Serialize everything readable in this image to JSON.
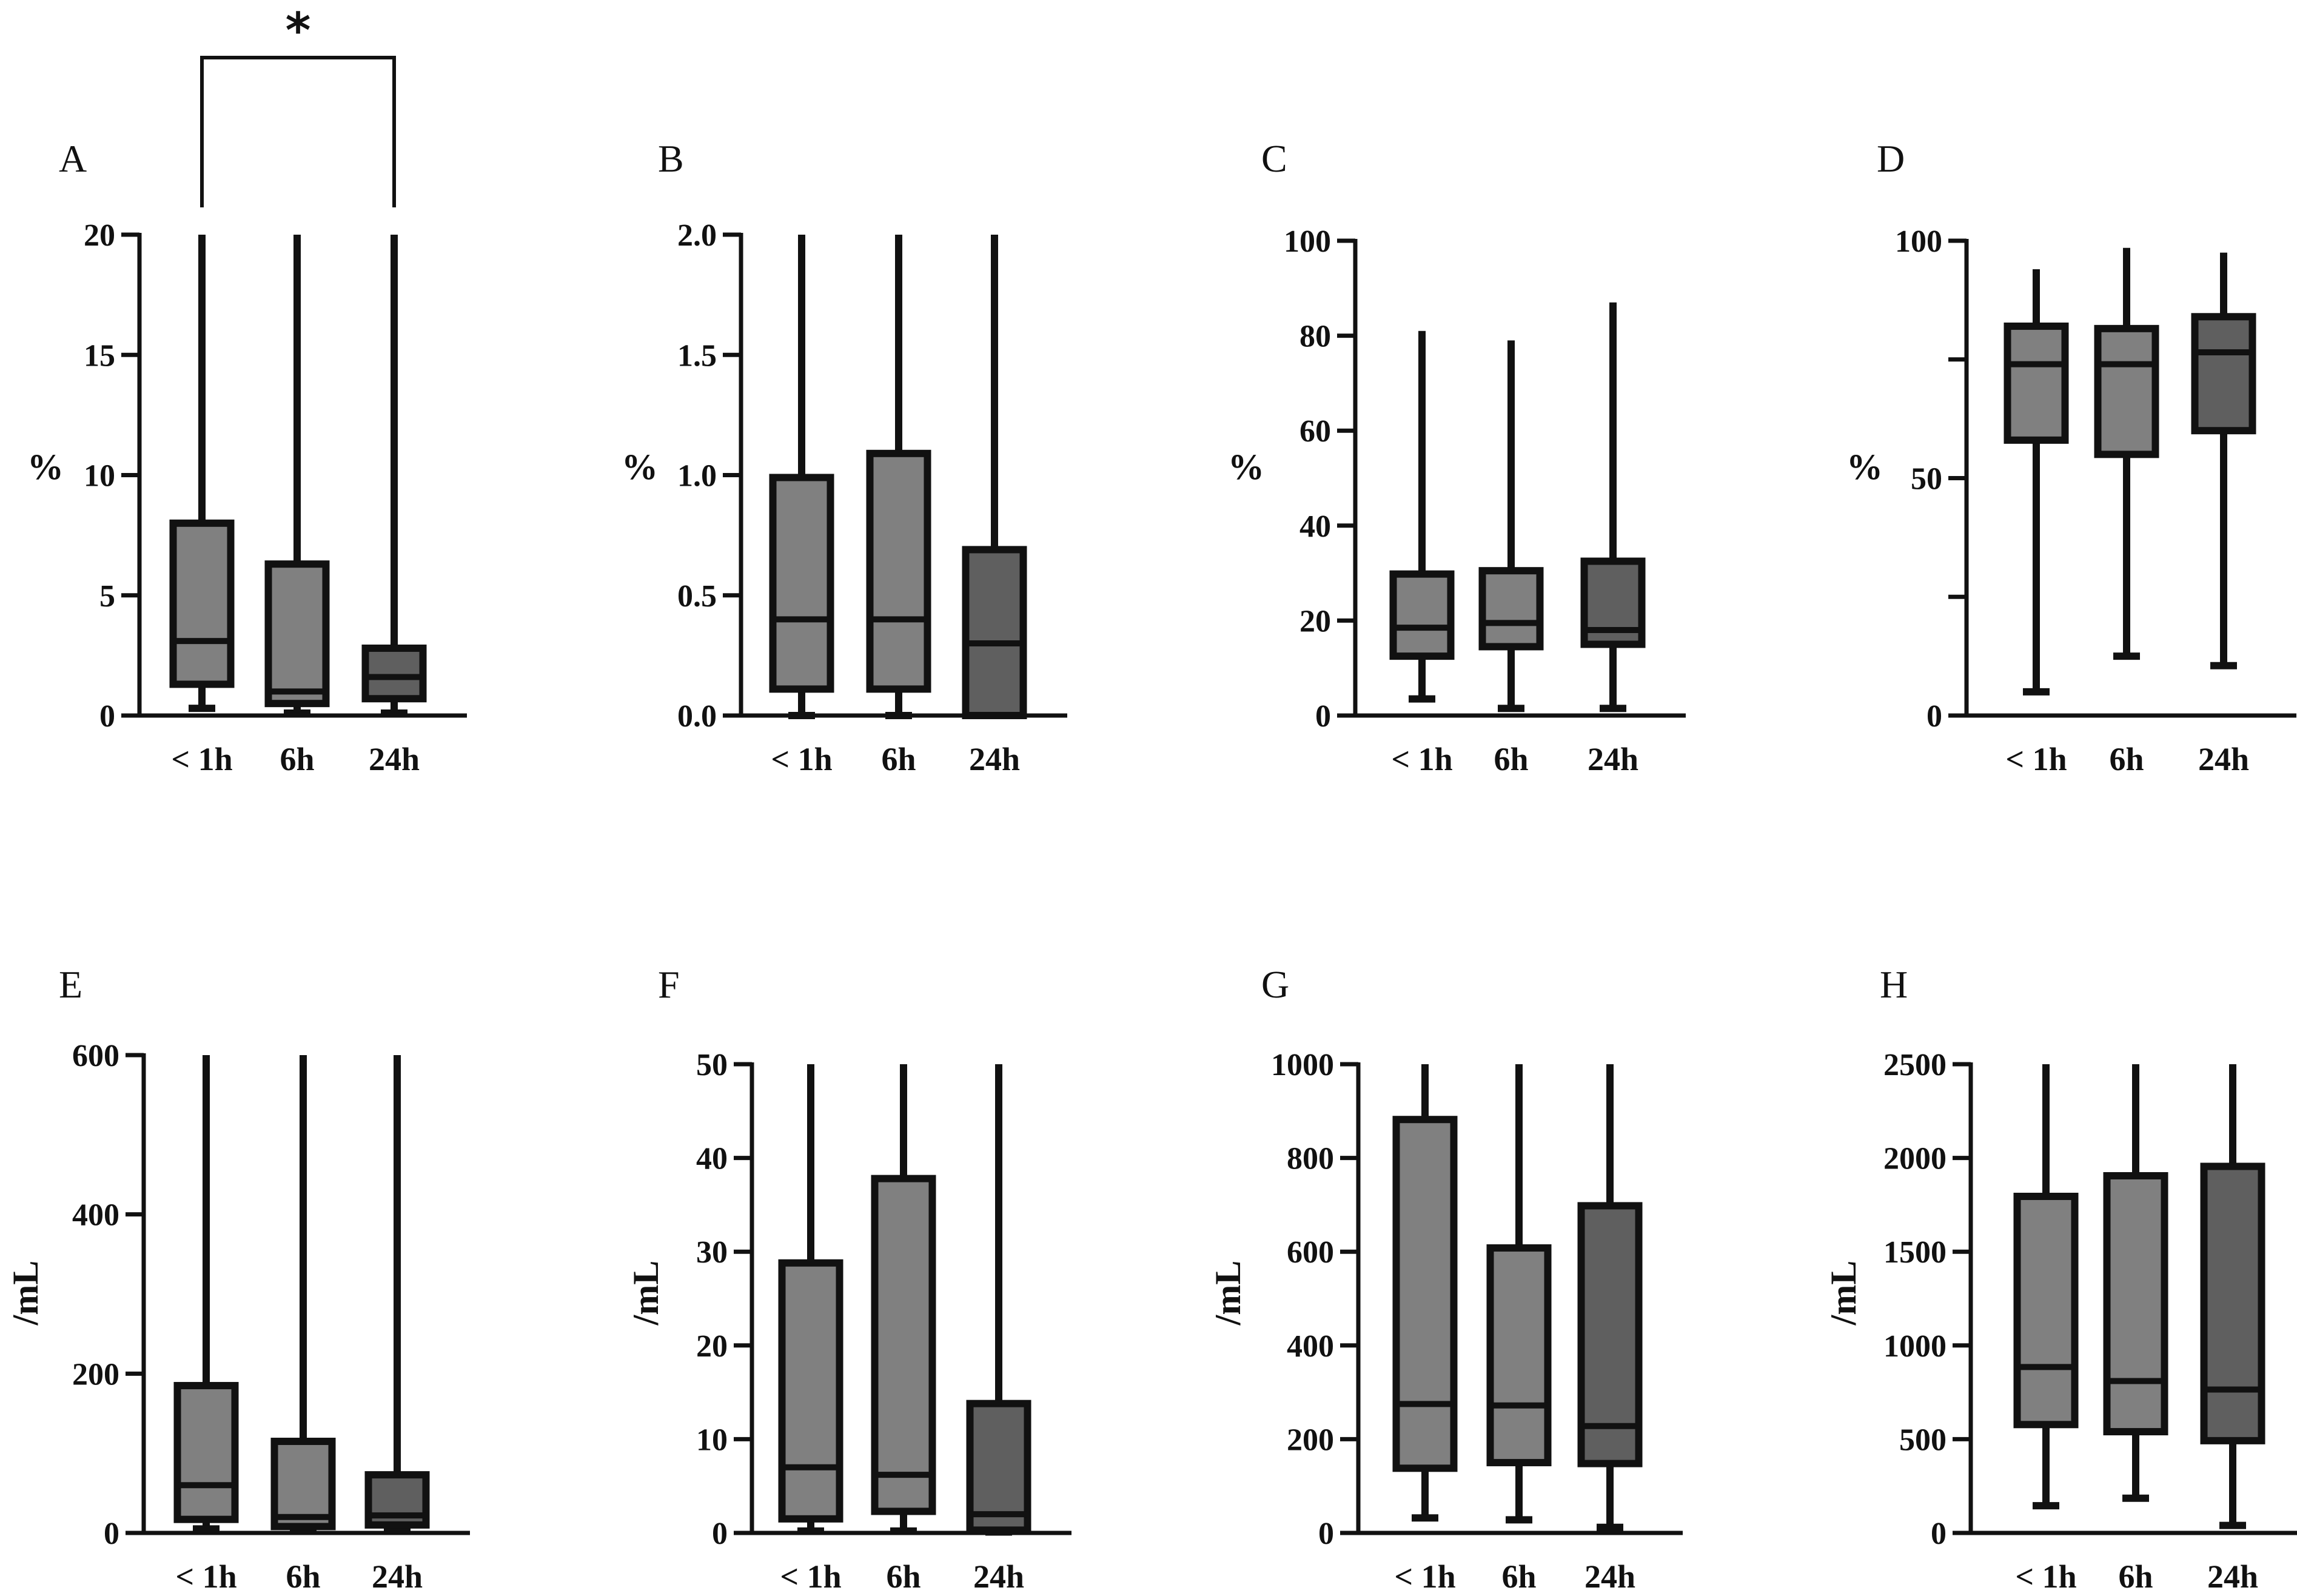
{
  "colors": {
    "light_box": "#808080",
    "dark_box": "#5f5f5f",
    "ink": "#111111"
  },
  "chart_data": [
    {
      "type": "box",
      "panel": "A",
      "ylabel": "%",
      "ylim": [
        0,
        20
      ],
      "yticks": [
        0,
        5,
        10,
        15,
        20
      ],
      "tick_labels": [
        "0",
        "5",
        "10",
        "15",
        "20"
      ],
      "categories": [
        "< 1h",
        "6h",
        "24h"
      ],
      "boxes": [
        {
          "min": 0.3,
          "q1": 1.3,
          "median": 3.1,
          "q3": 8.0,
          "max": 20
        },
        {
          "min": 0.1,
          "q1": 0.5,
          "median": 1.0,
          "q3": 6.3,
          "max": 20
        },
        {
          "min": 0.1,
          "q1": 0.7,
          "median": 1.6,
          "q3": 2.8,
          "max": 20
        }
      ],
      "significance": {
        "from": 0,
        "to": 2,
        "label": "*"
      }
    },
    {
      "type": "box",
      "panel": "B",
      "ylabel": "%",
      "ylim": [
        0,
        2
      ],
      "yticks": [
        0,
        0.5,
        1,
        1.5,
        2
      ],
      "tick_labels": [
        "0.0",
        "0.5",
        "1.0",
        "1.5",
        "2.0"
      ],
      "categories": [
        "< 1h",
        "6h",
        "24h"
      ],
      "boxes": [
        {
          "min": 0.0,
          "q1": 0.11,
          "median": 0.4,
          "q3": 0.99,
          "max": 2.0
        },
        {
          "min": 0.0,
          "q1": 0.11,
          "median": 0.4,
          "q3": 1.09,
          "max": 2.0
        },
        {
          "min": 0.0,
          "q1": 0.0,
          "median": 0.3,
          "q3": 0.69,
          "max": 2.0
        }
      ]
    },
    {
      "type": "box",
      "panel": "C",
      "ylabel": "%",
      "ylim": [
        0,
        100
      ],
      "yticks": [
        0,
        20,
        40,
        60,
        80,
        100
      ],
      "tick_labels": [
        "0",
        "20",
        "40",
        "60",
        "80",
        "100"
      ],
      "categories": [
        "< 1h",
        "6h",
        "24h"
      ],
      "boxes": [
        {
          "min": 3.5,
          "q1": 12.5,
          "median": 18.5,
          "q3": 29.8,
          "max": 81
        },
        {
          "min": 1.5,
          "q1": 14.5,
          "median": 19.5,
          "q3": 30.5,
          "max": 79
        },
        {
          "min": 1.5,
          "q1": 15,
          "median": 18,
          "q3": 32.5,
          "max": 87
        }
      ]
    },
    {
      "type": "box",
      "panel": "D",
      "ylabel": "%",
      "ylim": [
        0,
        100
      ],
      "yticks": [
        0,
        25,
        50,
        75,
        100
      ],
      "tick_labels": [
        "0",
        "",
        "50",
        "",
        "100"
      ],
      "categories": [
        "< 1h",
        "6h",
        "24h"
      ],
      "boxes": [
        {
          "min": 5,
          "q1": 58,
          "median": 74,
          "q3": 82,
          "max": 94
        },
        {
          "min": 12.5,
          "q1": 55,
          "median": 74,
          "q3": 81.5,
          "max": 98.5
        },
        {
          "min": 10.5,
          "q1": 60,
          "median": 76.5,
          "q3": 84,
          "max": 97.5
        }
      ]
    },
    {
      "type": "box",
      "panel": "E",
      "ylabel": "/mL",
      "ylim": [
        0,
        600
      ],
      "yticks": [
        0,
        200,
        400,
        600
      ],
      "tick_labels": [
        "0",
        "200",
        "400",
        "600"
      ],
      "categories": [
        "< 1h",
        "6h",
        "24h"
      ],
      "boxes": [
        {
          "min": 5,
          "q1": 17,
          "median": 60,
          "q3": 185,
          "max": 600
        },
        {
          "min": 2,
          "q1": 8,
          "median": 20,
          "q3": 115,
          "max": 600
        },
        {
          "min": 4,
          "q1": 10,
          "median": 22,
          "q3": 73,
          "max": 600
        }
      ]
    },
    {
      "type": "box",
      "panel": "F",
      "ylabel": "/mL",
      "ylim": [
        0,
        50
      ],
      "yticks": [
        0,
        10,
        20,
        30,
        40,
        50
      ],
      "tick_labels": [
        "0",
        "10",
        "20",
        "30",
        "40",
        "50"
      ],
      "categories": [
        "< 1h",
        "6h",
        "24h"
      ],
      "boxes": [
        {
          "min": 0.2,
          "q1": 1.5,
          "median": 7,
          "q3": 28.8,
          "max": 50
        },
        {
          "min": 0.2,
          "q1": 2.3,
          "median": 6.2,
          "q3": 37.8,
          "max": 50
        },
        {
          "min": 0.1,
          "q1": 0.3,
          "median": 2.0,
          "q3": 13.8,
          "max": 50
        }
      ]
    },
    {
      "type": "box",
      "panel": "G",
      "ylabel": "/mL",
      "ylim": [
        0,
        1000
      ],
      "yticks": [
        0,
        200,
        400,
        600,
        800,
        1000
      ],
      "tick_labels": [
        "0",
        "200",
        "400",
        "600",
        "800",
        "1000"
      ],
      "categories": [
        "< 1h",
        "6h",
        "24h"
      ],
      "boxes": [
        {
          "min": 32,
          "q1": 138,
          "median": 275,
          "q3": 882,
          "max": 1000
        },
        {
          "min": 28,
          "q1": 150,
          "median": 272,
          "q3": 608,
          "max": 1000
        },
        {
          "min": 12,
          "q1": 148,
          "median": 228,
          "q3": 698,
          "max": 1000
        }
      ]
    },
    {
      "type": "box",
      "panel": "H",
      "ylabel": "/mL",
      "ylim": [
        0,
        2500
      ],
      "yticks": [
        0,
        500,
        1000,
        1500,
        2000,
        2500
      ],
      "tick_labels": [
        "0",
        "500",
        "1000",
        "1500",
        "2000",
        "2500"
      ],
      "categories": [
        "< 1h",
        "6h",
        "24h"
      ],
      "boxes": [
        {
          "min": 145,
          "q1": 578,
          "median": 885,
          "q3": 1795,
          "max": 2500
        },
        {
          "min": 185,
          "q1": 540,
          "median": 810,
          "q3": 1905,
          "max": 2500
        },
        {
          "min": 40,
          "q1": 492,
          "median": 765,
          "q3": 1955,
          "max": 2500
        }
      ]
    }
  ]
}
